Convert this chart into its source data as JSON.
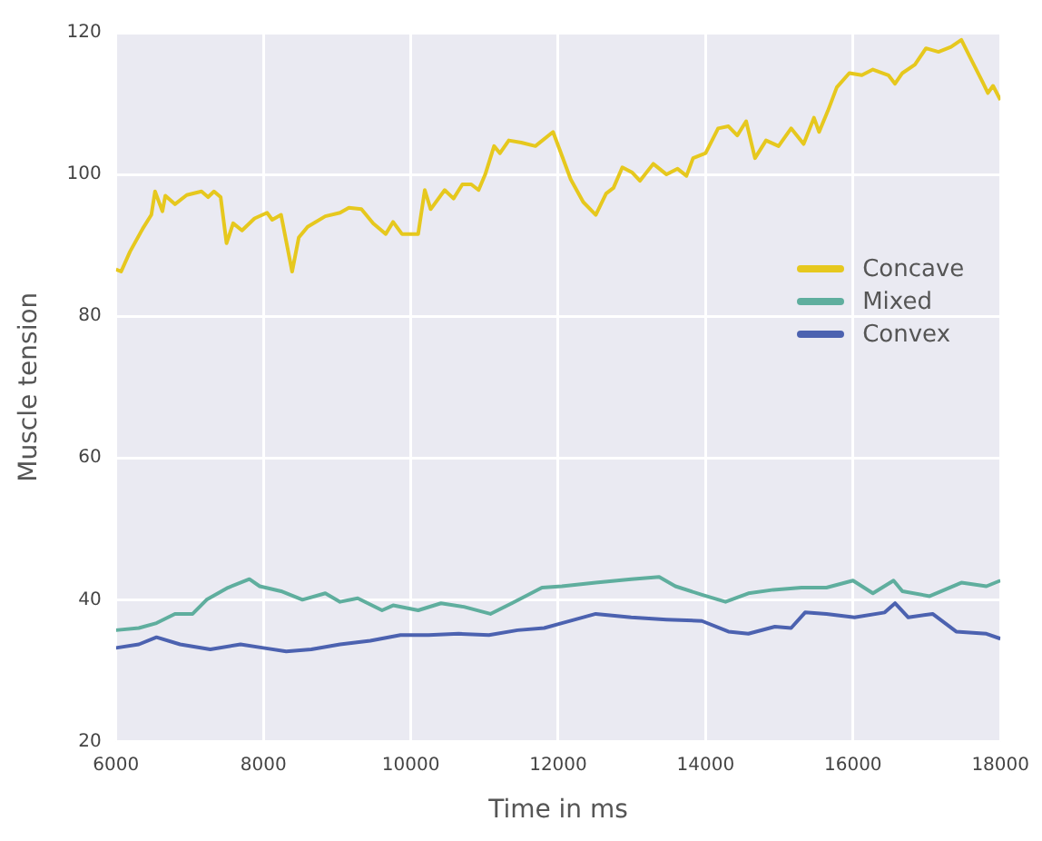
{
  "chart_data": {
    "type": "line",
    "xlabel": "Time in ms",
    "ylabel": "Muscle tension",
    "xlim": [
      6000,
      18000
    ],
    "xticks": [
      6000,
      8000,
      10000,
      12000,
      14000,
      16000,
      18000
    ],
    "ylim": [
      20,
      120
    ],
    "yticks": [
      20,
      40,
      60,
      80,
      100,
      120
    ],
    "grid": true,
    "legend": "right",
    "marker": "none",
    "series": [
      {
        "name": "Concave",
        "color": "#e6c81e",
        "x": [
          6000,
          6070,
          6190,
          6360,
          6480,
          6530,
          6630,
          6670,
          6800,
          6960,
          7160,
          7250,
          7330,
          7420,
          7500,
          7590,
          7710,
          7880,
          8050,
          8120,
          8240,
          8390,
          8480,
          8600,
          8840,
          9040,
          9160,
          9330,
          9490,
          9660,
          9760,
          9880,
          10100,
          10190,
          10270,
          10460,
          10580,
          10700,
          10820,
          10920,
          11010,
          11130,
          11210,
          11330,
          11500,
          11690,
          11930,
          12020,
          12170,
          12340,
          12510,
          12650,
          12750,
          12870,
          13000,
          13110,
          13290,
          13470,
          13620,
          13740,
          13830,
          14000,
          14170,
          14310,
          14430,
          14550,
          14670,
          14820,
          14990,
          15160,
          15330,
          15470,
          15540,
          15660,
          15780,
          15950,
          16120,
          16270,
          16480,
          16570,
          16670,
          16840,
          16990,
          17160,
          17330,
          17470,
          17590,
          17760,
          17830,
          17900,
          18000
        ],
        "values": [
          86.6,
          86.3,
          89.1,
          92.3,
          94.3,
          97.6,
          94.8,
          97.0,
          95.8,
          97.1,
          97.6,
          96.8,
          97.6,
          96.8,
          90.3,
          93.1,
          92.1,
          93.8,
          94.6,
          93.6,
          94.3,
          86.3,
          91.1,
          92.6,
          94.1,
          94.6,
          95.3,
          95.1,
          93.1,
          91.6,
          93.3,
          91.6,
          91.6,
          97.8,
          95.1,
          97.8,
          96.6,
          98.6,
          98.6,
          97.8,
          100.0,
          104.0,
          103.0,
          104.8,
          104.5,
          104.0,
          106.0,
          103.5,
          99.3,
          96.1,
          94.3,
          97.3,
          98.1,
          101.0,
          100.3,
          99.1,
          101.5,
          100.0,
          100.8,
          99.8,
          102.3,
          103.0,
          106.5,
          106.8,
          105.5,
          107.5,
          102.3,
          104.8,
          104.0,
          106.5,
          104.3,
          108.0,
          106.0,
          109.0,
          112.3,
          114.3,
          114.0,
          114.8,
          114.0,
          112.8,
          114.3,
          115.5,
          117.8,
          117.3,
          118.0,
          119.0,
          116.5,
          113.0,
          111.5,
          112.5,
          110.5
        ]
      },
      {
        "name": "Mixed",
        "color": "#5fae9e",
        "x": [
          6000,
          6310,
          6550,
          6800,
          7040,
          7230,
          7520,
          7810,
          7950,
          8240,
          8530,
          8840,
          9040,
          9280,
          9610,
          9760,
          10100,
          10410,
          10720,
          11080,
          11370,
          11780,
          12050,
          12510,
          12990,
          13370,
          13590,
          13950,
          14270,
          14580,
          14920,
          15300,
          15640,
          16000,
          16270,
          16550,
          16670,
          17040,
          17470,
          17810,
          18000
        ],
        "values": [
          35.7,
          36.0,
          36.7,
          38.0,
          38.0,
          40.0,
          41.7,
          42.9,
          41.9,
          41.2,
          40.0,
          40.9,
          39.7,
          40.2,
          38.5,
          39.2,
          38.5,
          39.5,
          39.0,
          38.0,
          39.5,
          41.7,
          41.9,
          42.4,
          42.9,
          43.2,
          41.9,
          40.7,
          39.7,
          40.9,
          41.4,
          41.7,
          41.7,
          42.7,
          40.9,
          42.7,
          41.2,
          40.5,
          42.4,
          41.9,
          42.7
        ]
      },
      {
        "name": "Convex",
        "color": "#4c62b0",
        "x": [
          6000,
          6310,
          6550,
          6870,
          7280,
          7690,
          8000,
          8310,
          8650,
          9040,
          9450,
          9860,
          10240,
          10650,
          11060,
          11450,
          11810,
          12050,
          12510,
          12990,
          13470,
          13950,
          14310,
          14580,
          14940,
          15160,
          15350,
          15640,
          16020,
          16430,
          16570,
          16750,
          17080,
          17400,
          17810,
          18000
        ],
        "values": [
          33.2,
          33.7,
          34.7,
          33.7,
          33.0,
          33.7,
          33.2,
          32.7,
          33.0,
          33.7,
          34.2,
          35.0,
          35.0,
          35.2,
          35.0,
          35.7,
          36.0,
          36.7,
          38.0,
          37.5,
          37.2,
          37.0,
          35.5,
          35.2,
          36.2,
          36.0,
          38.2,
          38.0,
          37.5,
          38.2,
          39.5,
          37.5,
          38.0,
          35.5,
          35.2,
          34.5
        ]
      }
    ]
  }
}
